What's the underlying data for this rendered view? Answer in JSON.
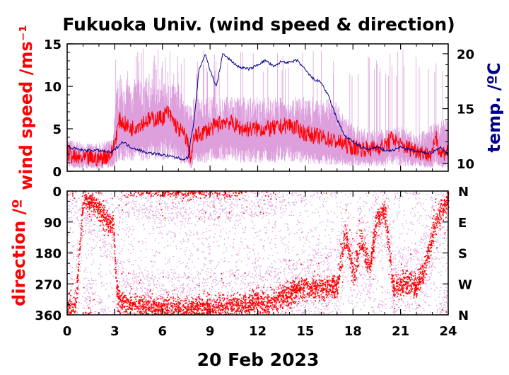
{
  "chart_data": [
    {
      "type": "line",
      "title": "Fukuoka Univ. (wind speed & direction)",
      "ylabel": "wind speed /ms⁻¹",
      "y2label": "temp. /ºC",
      "xlim": [
        0,
        24
      ],
      "ylim": [
        0,
        15
      ],
      "y2lim": [
        9.3,
        20.9
      ],
      "yticks": [
        "0",
        "5",
        "10",
        "15"
      ],
      "y2ticks": [
        "10",
        "15",
        "20"
      ],
      "colors": {
        "mean_speed": "#ff0000",
        "gust_speed": "#dda0dd",
        "temperature": "#00008b"
      },
      "series": [
        {
          "role": "gust",
          "x": [
            0,
            1,
            2,
            2.9,
            3.1,
            4,
            5,
            6,
            7,
            7.5,
            8,
            9,
            10,
            11,
            12,
            13,
            14,
            15,
            16,
            17,
            17.5,
            18,
            19,
            20,
            21,
            22,
            23,
            24
          ],
          "values": [
            3.5,
            3,
            3,
            3.5,
            10,
            10,
            10,
            10,
            9.5,
            7,
            8,
            8,
            8,
            8,
            8,
            8,
            8,
            8,
            8,
            7.5,
            6,
            5,
            4.5,
            4.5,
            5,
            4,
            5,
            6
          ]
        },
        {
          "role": "mean",
          "x": [
            0,
            0.5,
            1,
            2,
            2.8,
            3,
            3.3,
            4,
            5,
            6,
            6.3,
            7,
            7.5,
            7.8,
            8,
            9,
            10,
            11,
            12,
            13,
            14,
            15,
            16,
            17,
            18,
            19,
            20,
            20.5,
            21,
            22,
            23,
            23.2,
            23.5,
            24
          ],
          "values": [
            2.3,
            1.5,
            1.5,
            1.5,
            2,
            3.5,
            6,
            5,
            6,
            6.3,
            7,
            5,
            4,
            1.5,
            4,
            5,
            6,
            5,
            5,
            5,
            5.5,
            4.5,
            4,
            3.5,
            2.8,
            2.6,
            3,
            4,
            3,
            2.5,
            1.8,
            4.5,
            2,
            2.5
          ]
        },
        {
          "role": "temperature",
          "axis": "right",
          "x": [
            0,
            1,
            2,
            2.8,
            3.5,
            4,
            5,
            6,
            7,
            7.2,
            7.6,
            8,
            8.3,
            8.7,
            9,
            9.4,
            9.8,
            10.2,
            10.8,
            11.5,
            12,
            12.5,
            13,
            13.5,
            14,
            14.5,
            15,
            15.5,
            16,
            16.5,
            17,
            17.5,
            18,
            18.5,
            19,
            19.5,
            20,
            20.5,
            21,
            21.5,
            22,
            22.5,
            23,
            23.5,
            24
          ],
          "values": [
            11.5,
            11.2,
            11.2,
            11,
            12,
            11.5,
            11,
            10.8,
            10.5,
            10.4,
            10.5,
            14,
            18.5,
            20,
            18.5,
            17,
            20,
            19.5,
            18.8,
            18.6,
            19,
            19.4,
            18.8,
            19.3,
            19.2,
            19.4,
            18.5,
            17.7,
            17.4,
            16,
            14,
            12.5,
            12,
            11.5,
            11.3,
            11.5,
            11.2,
            11.2,
            11.5,
            11.3,
            11.1,
            11,
            11,
            11.5,
            10.8
          ]
        }
      ]
    },
    {
      "type": "scatter",
      "ylabel": "direction /º",
      "xlabel": "20 Feb 2023",
      "xticks": [
        "0",
        "3",
        "6",
        "9",
        "12",
        "15",
        "18",
        "21",
        "24"
      ],
      "xlim": [
        0,
        24
      ],
      "ylim": [
        360,
        0
      ],
      "yticks": [
        "0",
        "90",
        "180",
        "270",
        "360"
      ],
      "y2ticks": [
        "N",
        "E",
        "S",
        "W",
        "N"
      ],
      "colors": {
        "mean_direction": "#ff0000",
        "sample_direction": "#dda0dd"
      },
      "series": [
        {
          "role": "mean",
          "x": [
            0,
            0.5,
            1,
            1.5,
            2,
            2.5,
            2.9,
            3.1,
            3.5,
            4,
            5,
            6,
            7,
            8,
            9,
            10,
            11,
            12,
            12.5,
            13,
            14,
            15,
            16,
            17,
            17.5,
            18,
            18.5,
            19,
            19.5,
            20,
            20.5,
            21,
            21.5,
            22,
            22.5,
            23,
            23.5,
            24
          ],
          "values": [
            335,
            340,
            20,
            30,
            55,
            85,
            100,
            300,
            330,
            335,
            340,
            345,
            345,
            345,
            340,
            340,
            335,
            325,
            330,
            320,
            300,
            280,
            285,
            275,
            120,
            250,
            140,
            230,
            80,
            60,
            280,
            275,
            265,
            275,
            230,
            120,
            60,
            20
          ]
        }
      ]
    }
  ]
}
